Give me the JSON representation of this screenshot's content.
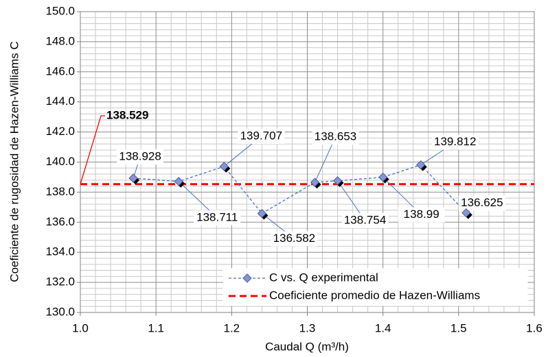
{
  "chart_data": {
    "type": "scatter",
    "xlabel": "Caudal Q  (m³/h)",
    "ylabel": "Coeficiente de rugosidad de Hazen-Williams    C",
    "x": [
      1.07,
      1.13,
      1.19,
      1.24,
      1.31,
      1.34,
      1.4,
      1.45,
      1.51
    ],
    "series": [
      {
        "name": "C  vs. Q experimental",
        "color": "#8497d0",
        "values": [
          138.928,
          138.711,
          139.707,
          136.582,
          138.653,
          138.754,
          138.99,
          139.812,
          136.625
        ]
      }
    ],
    "average": {
      "name": "Coeficiente promedio de Hazen-Williams",
      "color": "#ff0000",
      "value": 138.529
    },
    "xlim": [
      1.0,
      1.6
    ],
    "xticks": [
      {
        "value": 1.0,
        "label": "1.0"
      },
      1.1,
      1.2,
      1.3,
      1.4,
      1.5,
      {
        "value": 1.6,
        "label": "1.6"
      }
    ],
    "ylim": [
      130,
      150
    ],
    "yticks": [
      {
        "value": 130,
        "label": "130.0"
      },
      {
        "value": 132,
        "label": "132.0"
      },
      {
        "value": 134,
        "label": "134.0"
      },
      {
        "value": 136,
        "label": "136.0"
      },
      {
        "value": 138,
        "label": "138.0"
      },
      {
        "value": 140,
        "label": "140.0"
      },
      {
        "value": 142,
        "label": "142.0"
      },
      {
        "value": 144,
        "label": "144.0"
      },
      {
        "value": 146,
        "label": "146.0"
      },
      {
        "value": 148,
        "label": "148.0"
      },
      {
        "value": 150,
        "label": "150.0"
      }
    ],
    "grid": true,
    "legend": "lower right"
  }
}
